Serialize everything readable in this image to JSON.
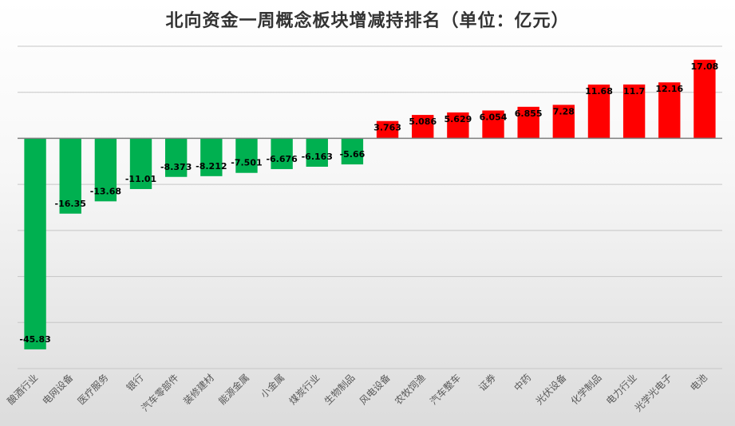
{
  "chart_data": {
    "type": "bar",
    "title": "北向资金一周概念板块增减持排名（单位：亿元）",
    "xlabel": "",
    "ylabel": "",
    "ylim": [
      -50,
      20
    ],
    "grid": true,
    "legend": "none",
    "categories": [
      "酿酒行业",
      "电网设备",
      "医疗服务",
      "银行",
      "汽车零部件",
      "装修建材",
      "能源金属",
      "小金属",
      "煤炭行业",
      "生物制品",
      "风电设备",
      "农牧饲渔",
      "汽车整车",
      "证券",
      "中药",
      "光伏设备",
      "化学制品",
      "电力行业",
      "光学光电子",
      "电池"
    ],
    "values": [
      -45.83,
      -16.35,
      -13.68,
      -11.01,
      -8.373,
      -8.212,
      -7.501,
      -6.676,
      -6.163,
      -5.66,
      3.763,
      5.086,
      5.629,
      6.054,
      6.855,
      7.28,
      11.68,
      11.7,
      12.16,
      17.08
    ],
    "value_labels": [
      "-45.83",
      "-16.35",
      "-13.68",
      "-11.01",
      "-8.373",
      "-8.212",
      "-7.501",
      "-6.676",
      "-6.163",
      "-5.66",
      "3.763",
      "5.086",
      "5.629",
      "6.054",
      "6.855",
      "7.28",
      "11.68",
      "11.7",
      "12.16",
      "17.08"
    ],
    "colors": {
      "positive": "#ff0000",
      "negative": "#00b050",
      "grid": "#c6c6c6",
      "label": "#000000",
      "category_label": "#595959"
    }
  }
}
